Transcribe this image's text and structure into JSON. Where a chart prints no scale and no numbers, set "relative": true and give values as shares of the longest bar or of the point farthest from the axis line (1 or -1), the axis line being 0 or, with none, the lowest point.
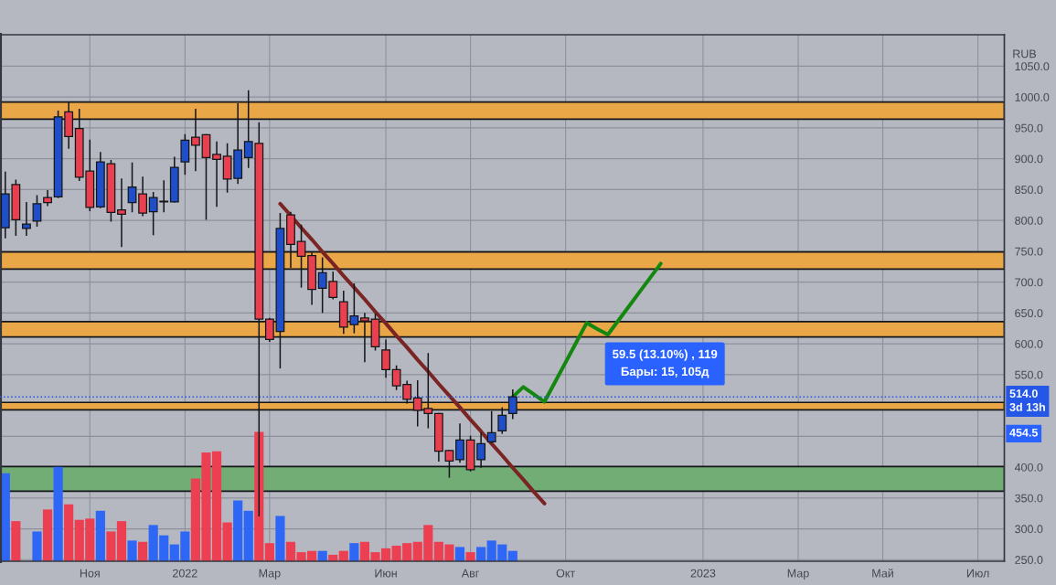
{
  "chart_data": [
    {
      "type": "candlestick",
      "categories": [
        null,
        null,
        null,
        null,
        null,
        null,
        null,
        null,
        "Ноя",
        null,
        null,
        null,
        null,
        null,
        null,
        null,
        null,
        "2022",
        null,
        null,
        null,
        null,
        null,
        null,
        null,
        "Мар",
        null,
        null,
        null,
        null,
        null,
        null,
        null,
        null,
        null,
        null,
        "Июн",
        null,
        null,
        null,
        null,
        null,
        null,
        null,
        "Авг",
        null,
        null,
        null,
        null,
        null,
        null,
        null,
        null,
        "Окт",
        null,
        null,
        null,
        null,
        null,
        null,
        null,
        null,
        null,
        null,
        null,
        null,
        "2023",
        null,
        null,
        null,
        null,
        null,
        null,
        null,
        null,
        "Мар",
        null,
        null,
        null,
        null,
        null,
        null,
        null,
        "Май",
        null,
        null,
        null,
        null,
        null,
        null,
        null,
        null,
        "Июл",
        null,
        null
      ],
      "ohlc": [
        [
          788,
          879,
          771,
          843
        ],
        [
          858,
          866,
          775,
          801
        ],
        [
          787,
          830,
          775,
          794
        ],
        [
          799,
          841,
          790,
          827
        ],
        [
          837,
          849,
          823,
          829
        ],
        [
          838,
          978,
          836,
          968
        ],
        [
          976,
          992,
          916,
          936
        ],
        [
          949,
          981,
          864,
          870
        ],
        [
          880,
          931,
          815,
          821
        ],
        [
          822,
          911,
          820,
          895
        ],
        [
          892,
          898,
          798,
          813
        ],
        [
          817,
          868,
          757,
          810
        ],
        [
          829,
          894,
          813,
          854
        ],
        [
          843,
          871,
          807,
          812
        ],
        [
          814,
          846,
          776,
          837
        ],
        [
          830,
          865,
          813,
          831
        ],
        [
          830,
          903,
          829,
          886
        ],
        [
          895,
          940,
          874,
          930
        ],
        [
          935,
          981,
          880,
          922
        ],
        [
          939,
          940,
          801,
          902
        ],
        [
          907,
          928,
          822,
          899
        ],
        [
          904,
          925,
          845,
          867
        ],
        [
          868,
          990,
          859,
          914
        ],
        [
          902,
          1011,
          885,
          928
        ],
        [
          925,
          959,
          320,
          640
        ],
        [
          640,
          642,
          603,
          607
        ],
        [
          620,
          812,
          560,
          787
        ],
        [
          809,
          814,
          723,
          761
        ],
        [
          766,
          793,
          691,
          742
        ],
        [
          743,
          748,
          663,
          688
        ],
        [
          690,
          740,
          650,
          715
        ],
        [
          701,
          717,
          672,
          675
        ],
        [
          668,
          686,
          616,
          627
        ],
        [
          631,
          698,
          617,
          645
        ],
        [
          642,
          650,
          570,
          637
        ],
        [
          640,
          649,
          589,
          595
        ],
        [
          590,
          607,
          545,
          558
        ],
        [
          558,
          565,
          525,
          532
        ],
        [
          534,
          540,
          503,
          510
        ],
        [
          512,
          541,
          466,
          492
        ],
        [
          495,
          585,
          463,
          487
        ],
        [
          487,
          488,
          409,
          426
        ],
        [
          427,
          428,
          383,
          410
        ],
        [
          412,
          471,
          407,
          444
        ],
        [
          444,
          451,
          393,
          396
        ],
        [
          412,
          456,
          399,
          438
        ],
        [
          441,
          491,
          439,
          456
        ],
        [
          459,
          497,
          454,
          484
        ],
        [
          487,
          526,
          478,
          514
        ],
        null,
        null,
        null,
        null,
        null,
        null,
        null,
        null,
        null,
        null,
        null,
        null,
        null,
        null,
        null,
        null,
        null,
        null,
        null,
        null,
        null,
        null,
        null,
        null,
        null,
        null,
        null,
        null,
        null,
        null,
        null,
        null,
        null,
        null,
        null,
        null,
        null,
        null,
        null,
        null,
        null,
        null,
        null,
        null,
        null,
        null
      ],
      "colors": [
        "#1f4fc8",
        "#e8404e",
        "#1f4fc8",
        "#1f4fc8",
        "#e8404e",
        "#1f4fc8",
        "#e8404e",
        "#e8404e",
        "#e8404e",
        "#1f4fc8",
        "#e8404e",
        "#e8404e",
        "#1f4fc8",
        "#e8404e",
        "#1f4fc8",
        "#1f4fc8",
        "#1f4fc8",
        "#1f4fc8",
        "#e8404e",
        "#e8404e",
        "#e8404e",
        "#e8404e",
        "#1f4fc8",
        "#1f4fc8",
        "#e8404e",
        "#e8404e",
        "#1f4fc8",
        "#e8404e",
        "#e8404e",
        "#e8404e",
        "#1f4fc8",
        "#e8404e",
        "#e8404e",
        "#1f4fc8",
        "#e8404e",
        "#e8404e",
        "#e8404e",
        "#e8404e",
        "#e8404e",
        "#e8404e",
        "#e8404e",
        "#e8404e",
        "#e8404e",
        "#1f4fc8",
        "#e8404e",
        "#1f4fc8",
        "#1f4fc8",
        "#1f4fc8",
        "#1f4fc8",
        null,
        null,
        null,
        null,
        null,
        null,
        null,
        null,
        null,
        null,
        null,
        null,
        null,
        null,
        null,
        null,
        null,
        null,
        null,
        null,
        null,
        null,
        null,
        null,
        null,
        null,
        null,
        null,
        null,
        null,
        null,
        null,
        null,
        null,
        null,
        null,
        null,
        null,
        null,
        null,
        null,
        null,
        null,
        null,
        null,
        null
      ],
      "series": [
        {
          "type": "line",
          "color": "#7b2424",
          "values": [
            null,
            null,
            null,
            null,
            null,
            null,
            null,
            null,
            null,
            null,
            null,
            null,
            null,
            null,
            null,
            null,
            null,
            null,
            null,
            null,
            null,
            null,
            null,
            null,
            null,
            null,
            827,
            808,
            788,
            769,
            749,
            730,
            710,
            691,
            672,
            652,
            633,
            613,
            594,
            574,
            555,
            535,
            516,
            497,
            477,
            458,
            438,
            419,
            399,
            380,
            360,
            341,
            null,
            null,
            null,
            null,
            null,
            null,
            null,
            null,
            null,
            null,
            null,
            null,
            null,
            null,
            null,
            null,
            null,
            null,
            null,
            null,
            null,
            null,
            null,
            null,
            null,
            null,
            null,
            null,
            null,
            null,
            null,
            null,
            null,
            null,
            null,
            null,
            null,
            null,
            null,
            null,
            null,
            null,
            null
          ]
        },
        {
          "type": "line",
          "color": "#13870f",
          "values": [
            null,
            null,
            null,
            null,
            null,
            null,
            null,
            null,
            null,
            null,
            null,
            null,
            null,
            null,
            null,
            null,
            null,
            null,
            null,
            null,
            null,
            null,
            null,
            null,
            null,
            null,
            null,
            null,
            null,
            null,
            null,
            null,
            null,
            null,
            null,
            null,
            null,
            null,
            null,
            null,
            null,
            null,
            null,
            null,
            null,
            null,
            null,
            null,
            514,
            530,
            518,
            506,
            538,
            570,
            602,
            634,
            624,
            615,
            638,
            661,
            684,
            707,
            730,
            null,
            null,
            null,
            null,
            null,
            null,
            null,
            null,
            null,
            null,
            null,
            null,
            null,
            null,
            null,
            null,
            null,
            null,
            null,
            null,
            null,
            null,
            null,
            null,
            null,
            null,
            null,
            null,
            null,
            null,
            null,
            null
          ]
        }
      ],
      "ylim": [
        247.5,
        1101
      ],
      "yticks": [
        {
          "value": 250,
          "label": "250.0"
        },
        {
          "value": 300,
          "label": "300.0"
        },
        {
          "value": 350,
          "label": "350.0"
        },
        {
          "value": 400,
          "label": "400.0"
        },
        {
          "value": 450,
          "label": null
        },
        {
          "value": 550,
          "label": "550.0"
        },
        {
          "value": 600,
          "label": "600.0"
        },
        {
          "value": 650,
          "label": "650.0"
        },
        {
          "value": 700,
          "label": "700.0"
        },
        {
          "value": 750,
          "label": "750.0"
        },
        {
          "value": 800,
          "label": "800.0"
        },
        {
          "value": 850,
          "label": "850.0"
        },
        {
          "value": 900,
          "label": "900.0"
        },
        {
          "value": 950,
          "label": "950.0"
        },
        {
          "value": 1000,
          "label": "1000.0"
        },
        {
          "value": 1050,
          "label": "1050.0"
        }
      ],
      "ylabel": "RUB",
      "grid": true,
      "bands": [
        {
          "axis": "y",
          "from": 964,
          "to": 992,
          "color": "#e9a748"
        },
        {
          "axis": "y",
          "from": 721,
          "to": 749,
          "color": "#e9a748"
        },
        {
          "axis": "y",
          "from": 611,
          "to": 636,
          "color": "#e9a748"
        },
        {
          "axis": "y",
          "from": 493,
          "to": 505,
          "color": "#e9a748"
        },
        {
          "axis": "y",
          "from": 361,
          "to": 401,
          "color": "#72ad76"
        }
      ],
      "ref_lines": [
        {
          "axis": "y",
          "value": 514,
          "label": "514.0\n3d 13h",
          "color": "#2457e8",
          "line_style": "dotted"
        }
      ],
      "annotations": [
        "59.5 (13.10%) , 119\nБары: 15, 105д",
        {
          "text": "454.5",
          "y": 454.5
        }
      ]
    },
    {
      "type": "bar",
      "relative": true,
      "categories": [
        null,
        null,
        null,
        null,
        null,
        null,
        null,
        null,
        null,
        null,
        null,
        null,
        null,
        null,
        null,
        null,
        null,
        null,
        null,
        null,
        null,
        null,
        null,
        null,
        null,
        null,
        null,
        null,
        null,
        null,
        null,
        null,
        null,
        null,
        null,
        null,
        null,
        null,
        null,
        null,
        null,
        null,
        null,
        null,
        null,
        null,
        null,
        null,
        null,
        null,
        null,
        null,
        null,
        null,
        null,
        null,
        null,
        null,
        null,
        null,
        null,
        null,
        null,
        null,
        null,
        null,
        null,
        null,
        null,
        null,
        null,
        null,
        null,
        null,
        null,
        null,
        null,
        null,
        null,
        null,
        null,
        null,
        null,
        null,
        null,
        null,
        null,
        null,
        null,
        null,
        null,
        null,
        null,
        null,
        null
      ],
      "values": [
        0.68,
        0.31,
        null,
        0.23,
        0.4,
        0.73,
        0.44,
        0.32,
        0.33,
        0.39,
        0.23,
        0.31,
        0.16,
        0.15,
        0.28,
        0.2,
        0.13,
        0.23,
        0.64,
        0.84,
        0.85,
        0.3,
        0.47,
        0.39,
        1,
        0.14,
        0.35,
        0.15,
        0.07,
        0.08,
        0.08,
        0.05,
        0.08,
        0.14,
        0.15,
        0.07,
        0.1,
        0.12,
        0.14,
        0.15,
        0.28,
        0.15,
        0.13,
        0.11,
        0.07,
        0.11,
        0.16,
        0.13,
        0.08,
        null,
        null,
        null,
        null,
        null,
        null,
        null,
        null,
        null,
        null,
        null,
        null,
        null,
        null,
        null,
        null,
        null,
        null,
        null,
        null,
        null,
        null,
        null,
        null,
        null,
        null,
        null,
        null,
        null,
        null,
        null,
        null,
        null,
        null,
        null,
        null,
        null,
        null,
        null,
        null,
        null,
        null,
        null,
        null,
        null,
        null
      ],
      "colors": [
        "#2e66f5",
        "#ec4052",
        "#2e66f5",
        "#2e66f5",
        "#ec4052",
        "#2e66f5",
        "#ec4052",
        "#ec4052",
        "#ec4052",
        "#2e66f5",
        "#ec4052",
        "#ec4052",
        "#2e66f5",
        "#ec4052",
        "#2e66f5",
        "#2e66f5",
        "#2e66f5",
        "#2e66f5",
        "#ec4052",
        "#ec4052",
        "#ec4052",
        "#ec4052",
        "#2e66f5",
        "#2e66f5",
        "#ec4052",
        "#ec4052",
        "#2e66f5",
        "#ec4052",
        "#ec4052",
        "#ec4052",
        "#2e66f5",
        "#ec4052",
        "#ec4052",
        "#2e66f5",
        "#ec4052",
        "#ec4052",
        "#ec4052",
        "#ec4052",
        "#ec4052",
        "#ec4052",
        "#ec4052",
        "#ec4052",
        "#ec4052",
        "#2e66f5",
        "#ec4052",
        "#2e66f5",
        "#2e66f5",
        "#2e66f5",
        "#2e66f5",
        null,
        null,
        null,
        null,
        null,
        null,
        null,
        null,
        null,
        null,
        null,
        null,
        null,
        null,
        null,
        null,
        null,
        null,
        null,
        null,
        null,
        null,
        null,
        null,
        null,
        null,
        null,
        null,
        null,
        null,
        null,
        null,
        null,
        null,
        null,
        null,
        null,
        null,
        null,
        null,
        null,
        null,
        null,
        null,
        null,
        null
      ]
    }
  ]
}
